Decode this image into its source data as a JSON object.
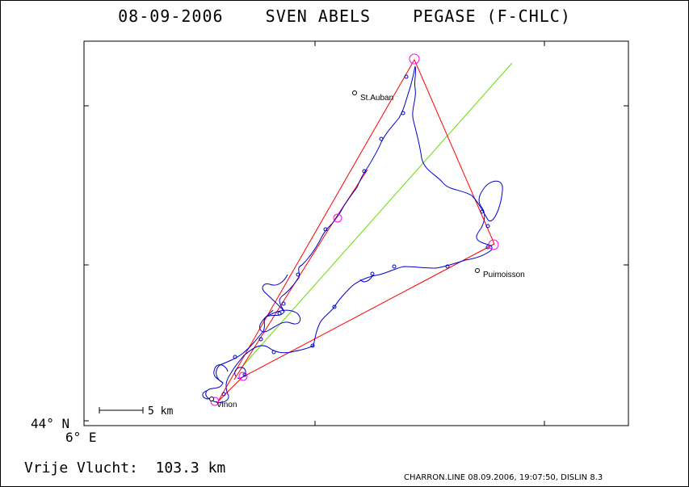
{
  "title": "08-09-2006    SVEN ABELS    PEGASE (F-CHLC)",
  "axis": {
    "lat_label": "44° N",
    "lon_label": "6° E"
  },
  "scale_bar": {
    "label": "5 km"
  },
  "distance_text": "Vrije Vlucht:  103.3 km",
  "footer": "CHARRON.LINE 08.09.2006, 19:07:50, DISLIN 8.3",
  "places": [
    {
      "name": "St.Auban"
    },
    {
      "name": "Puimoisson"
    },
    {
      "name": "Vinon"
    }
  ],
  "colors": {
    "task": "#ff0000",
    "track": "#0000cc",
    "wind_line": "#66dd00",
    "turnpoint": "#ff00ff"
  }
}
